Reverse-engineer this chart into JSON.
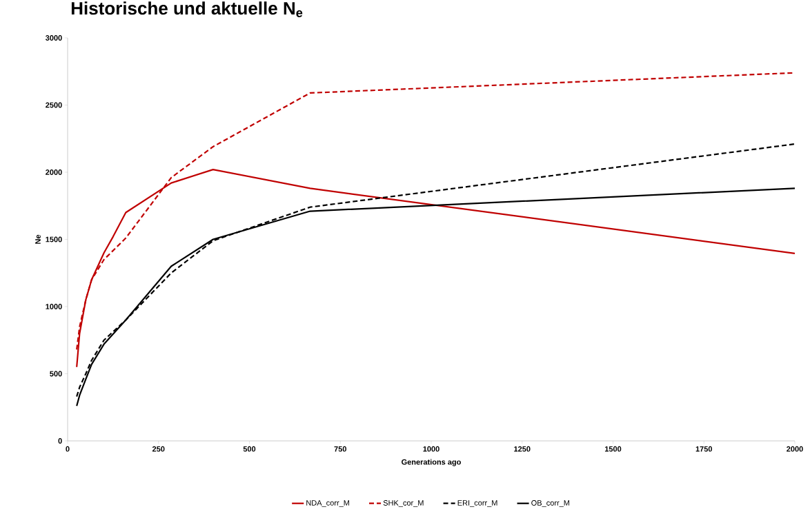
{
  "chart_data": {
    "type": "line",
    "title": "Historische und aktuelle N$_{e}$",
    "xlabel": "Generations ago",
    "ylabel": "Ne",
    "xlim": [
      0,
      2000
    ],
    "xticks": [
      0,
      250,
      500,
      750,
      1000,
      1250,
      1500,
      1750,
      2000
    ],
    "ylim": [
      0,
      3000
    ],
    "yticks": [
      0,
      500,
      1000,
      1500,
      2000,
      2500,
      3000
    ],
    "grid": false,
    "legend": "bottom",
    "series": [
      {
        "name": "NDA_corr_M",
        "color": "#c00000",
        "line_style": "solid",
        "x": [
          25,
          33,
          50,
          66,
          100,
          125,
          160,
          285,
          400,
          667,
          2000
        ],
        "values": [
          550,
          800,
          1050,
          1200,
          1400,
          1520,
          1700,
          1920,
          2020,
          1880,
          1395
        ]
      },
      {
        "name": "SHK_cor_M",
        "color": "#c00000",
        "line_style": "dashed",
        "x": [
          25,
          33,
          50,
          66,
          100,
          160,
          285,
          400,
          667,
          2000
        ],
        "values": [
          680,
          850,
          1050,
          1200,
          1350,
          1510,
          1960,
          2190,
          2590,
          2740
        ]
      },
      {
        "name": "ERI_corr_M",
        "color": "#000000",
        "line_style": "dashed",
        "x": [
          25,
          33,
          50,
          66,
          100,
          160,
          285,
          400,
          667,
          2000
        ],
        "values": [
          330,
          400,
          500,
          600,
          750,
          900,
          1250,
          1490,
          1740,
          2210
        ]
      },
      {
        "name": "OB_corr_M",
        "color": "#000000",
        "line_style": "solid",
        "x": [
          25,
          33,
          50,
          66,
          100,
          160,
          285,
          400,
          667,
          2000
        ],
        "values": [
          260,
          340,
          460,
          570,
          720,
          900,
          1300,
          1500,
          1710,
          1880
        ]
      }
    ]
  }
}
